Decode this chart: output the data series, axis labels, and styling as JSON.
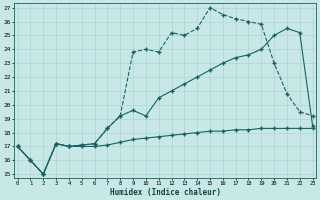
{
  "xlabel": "Humidex (Indice chaleur)",
  "bg_color": "#c8e8e8",
  "line_color": "#1a6060",
  "grid_color": "#a8d0d0",
  "xlim": [
    -0.3,
    23.3
  ],
  "ylim": [
    14.7,
    27.3
  ],
  "yticks": [
    15,
    16,
    17,
    18,
    19,
    20,
    21,
    22,
    23,
    24,
    25,
    26,
    27
  ],
  "xticks": [
    0,
    1,
    2,
    3,
    4,
    5,
    6,
    7,
    8,
    9,
    10,
    11,
    12,
    13,
    14,
    15,
    16,
    17,
    18,
    19,
    20,
    21,
    22,
    23
  ],
  "line1_x": [
    0,
    1,
    2,
    3,
    4,
    5,
    6,
    7,
    8,
    9,
    10,
    11,
    12,
    13,
    14,
    15,
    16,
    17,
    18,
    19,
    20,
    21,
    22,
    23
  ],
  "line1_y": [
    17.0,
    16.0,
    15.0,
    17.2,
    17.0,
    17.1,
    17.2,
    18.3,
    19.2,
    19.6,
    19.2,
    20.5,
    21.0,
    21.5,
    22.0,
    22.5,
    23.0,
    23.4,
    23.6,
    24.0,
    25.0,
    25.5,
    25.2,
    18.5
  ],
  "line2_x": [
    0,
    1,
    2,
    3,
    4,
    5,
    6,
    7,
    8,
    9,
    10,
    11,
    12,
    13,
    14,
    15,
    16,
    17,
    18,
    19,
    20,
    21,
    22,
    23
  ],
  "line2_y": [
    17.0,
    16.0,
    15.0,
    17.2,
    17.0,
    17.1,
    17.2,
    18.3,
    19.2,
    23.8,
    24.0,
    23.8,
    25.2,
    25.0,
    25.5,
    27.0,
    26.5,
    26.2,
    26.0,
    25.8,
    23.0,
    20.8,
    19.5,
    19.2
  ],
  "line3_x": [
    0,
    1,
    2,
    3,
    4,
    5,
    6,
    7,
    8,
    9,
    10,
    11,
    12,
    13,
    14,
    15,
    16,
    17,
    18,
    19,
    20,
    21,
    22,
    23
  ],
  "line3_y": [
    17.0,
    16.0,
    15.0,
    17.2,
    17.0,
    17.0,
    17.0,
    17.1,
    17.3,
    17.5,
    17.6,
    17.7,
    17.8,
    17.9,
    18.0,
    18.1,
    18.1,
    18.2,
    18.2,
    18.3,
    18.3,
    18.3,
    18.3,
    18.3
  ]
}
